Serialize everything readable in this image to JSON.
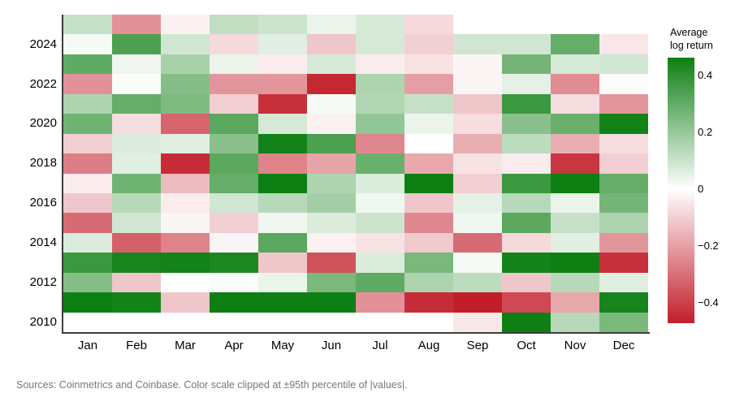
{
  "footer": {
    "source": "Sources: Coinmetrics and Coinbase. Color scale clipped at ±95th percentile of |values|."
  },
  "chart_data": {
    "type": "heatmap",
    "title": "",
    "legend_title": "Average log return",
    "x": [
      "Jan",
      "Feb",
      "Mar",
      "Apr",
      "May",
      "Jun",
      "Jul",
      "Aug",
      "Sep",
      "Oct",
      "Nov",
      "Dec"
    ],
    "y": [
      "2025",
      "2024",
      "2023",
      "2022",
      "2021",
      "2020",
      "2019",
      "2018",
      "2017",
      "2016",
      "2015",
      "2014",
      "2013",
      "2012",
      "2011",
      "2010"
    ],
    "y_tick_labels": [
      "2024",
      "2022",
      "2020",
      "2018",
      "2016",
      "2014",
      "2012",
      "2010"
    ],
    "values": [
      [
        0.11,
        -0.23,
        -0.03,
        0.12,
        0.1,
        0.04,
        0.08,
        -0.08,
        null,
        null,
        null,
        null
      ],
      [
        0.02,
        0.35,
        0.09,
        -0.08,
        0.06,
        -0.12,
        0.08,
        -0.1,
        0.09,
        0.09,
        0.3,
        -0.05
      ],
      [
        0.31,
        0.03,
        0.17,
        0.04,
        -0.04,
        0.08,
        -0.04,
        -0.06,
        -0.02,
        0.27,
        0.08,
        0.09
      ],
      [
        -0.23,
        0.01,
        0.24,
        -0.22,
        -0.22,
        -0.45,
        0.16,
        -0.2,
        -0.02,
        0.05,
        -0.24,
        0.01
      ],
      [
        0.16,
        0.3,
        0.25,
        -0.1,
        -0.43,
        0.02,
        0.15,
        0.11,
        -0.12,
        0.38,
        -0.07,
        -0.22
      ],
      [
        0.28,
        -0.07,
        -0.32,
        0.32,
        0.08,
        -0.03,
        0.21,
        0.04,
        -0.07,
        0.23,
        0.29,
        0.46
      ],
      [
        -0.1,
        0.07,
        0.06,
        0.23,
        0.46,
        0.35,
        -0.25,
        0.0,
        -0.17,
        0.13,
        -0.17,
        -0.07
      ],
      [
        -0.27,
        0.06,
        -0.44,
        0.32,
        -0.26,
        -0.19,
        0.29,
        -0.18,
        -0.06,
        -0.04,
        -0.42,
        -0.1
      ],
      [
        -0.04,
        0.28,
        -0.14,
        0.3,
        0.47,
        0.16,
        0.07,
        0.47,
        -0.1,
        0.38,
        0.47,
        0.3
      ],
      [
        -0.12,
        0.14,
        -0.04,
        0.09,
        0.14,
        0.18,
        0.03,
        -0.12,
        0.05,
        0.14,
        0.04,
        0.27
      ],
      [
        -0.31,
        0.09,
        -0.02,
        -0.1,
        0.03,
        0.07,
        0.1,
        -0.25,
        0.03,
        0.32,
        0.11,
        0.16
      ],
      [
        0.07,
        -0.33,
        -0.26,
        -0.02,
        0.32,
        -0.03,
        -0.06,
        -0.11,
        -0.31,
        -0.08,
        0.06,
        -0.22
      ],
      [
        0.38,
        0.45,
        0.46,
        0.44,
        -0.12,
        -0.36,
        0.07,
        0.26,
        0.02,
        0.46,
        0.47,
        -0.43
      ],
      [
        0.24,
        -0.12,
        0.0,
        0.01,
        0.04,
        0.26,
        0.31,
        0.16,
        0.13,
        -0.12,
        0.14,
        0.06
      ],
      [
        0.47,
        0.46,
        -0.12,
        0.47,
        0.47,
        0.47,
        -0.23,
        -0.44,
        -0.47,
        -0.38,
        -0.18,
        0.45
      ],
      [
        null,
        null,
        null,
        null,
        null,
        null,
        null,
        0.0,
        -0.05,
        0.47,
        0.14,
        0.26
      ]
    ],
    "colorbar": {
      "title_line1": "Average",
      "title_line2": "log return",
      "ticks": [
        {
          "value": 0.4,
          "label": "0.4"
        },
        {
          "value": 0.2,
          "label": "0.2"
        },
        {
          "value": 0.0,
          "label": "0"
        },
        {
          "value": -0.2,
          "label": "−0.2"
        },
        {
          "value": -0.4,
          "label": "−0.4"
        }
      ],
      "clip": 0.47,
      "max_color": "#0e7f13",
      "min_color": "#c21e2a",
      "zero_color": "#ffffff"
    },
    "layout": {
      "grid": false,
      "legend_position": "right",
      "x_range": [
        "Jan",
        "Dec"
      ],
      "y_range": [
        "2010",
        "2025"
      ]
    }
  }
}
